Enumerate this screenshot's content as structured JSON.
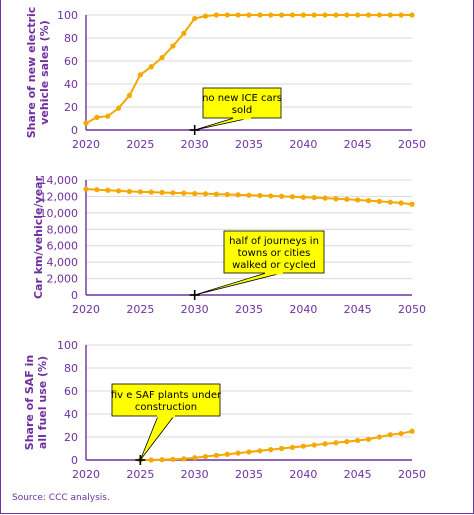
{
  "colors": {
    "axis": "#7030a0",
    "series": "#f5a800",
    "grid": "#d9d9d9",
    "callout_fill": "#ffff00"
  },
  "chart_data": [
    {
      "type": "line",
      "ylabel": "Share of new electric vehicle sales (%)",
      "ylim": [
        0,
        100
      ],
      "yticks": [
        0,
        20,
        40,
        60,
        80,
        100
      ],
      "ytick_labels": [
        "0",
        "20",
        "40",
        "60",
        "80",
        "100"
      ],
      "xlim": [
        2020,
        2050
      ],
      "xticks": [
        2020,
        2025,
        2030,
        2035,
        2040,
        2045,
        2050
      ],
      "grid": true,
      "series": [
        {
          "x": [
            2020,
            2021,
            2022,
            2023,
            2024,
            2025,
            2026,
            2027,
            2028,
            2029,
            2030,
            2031,
            2032,
            2033,
            2034,
            2035,
            2036,
            2037,
            2038,
            2039,
            2040,
            2041,
            2042,
            2043,
            2044,
            2045,
            2046,
            2047,
            2048,
            2049,
            2050
          ],
          "values": [
            6,
            11,
            12,
            19,
            30,
            48,
            55,
            63,
            73,
            84,
            97,
            99,
            100,
            100,
            100,
            100,
            100,
            100,
            100,
            100,
            100,
            100,
            100,
            100,
            100,
            100,
            100,
            100,
            100,
            100,
            100
          ]
        }
      ],
      "annotation": {
        "text_lines": [
          "no new ICE cars",
          "sold"
        ],
        "x": 2030,
        "y": 0
      }
    },
    {
      "type": "line",
      "ylabel": "Car km/vehicle/year",
      "ylim": [
        0,
        14000
      ],
      "yticks": [
        0,
        2000,
        4000,
        6000,
        8000,
        10000,
        12000,
        14000
      ],
      "ytick_labels": [
        "0",
        "2,000",
        "4,000",
        "6,000",
        "8,000",
        "10,000",
        "12,000",
        "14,000"
      ],
      "xlim": [
        2020,
        2050
      ],
      "xticks": [
        2020,
        2025,
        2030,
        2035,
        2040,
        2045,
        2050
      ],
      "grid": true,
      "series": [
        {
          "x": [
            2020,
            2021,
            2022,
            2023,
            2024,
            2025,
            2026,
            2027,
            2028,
            2029,
            2030,
            2031,
            2032,
            2033,
            2034,
            2035,
            2036,
            2037,
            2038,
            2039,
            2040,
            2041,
            2042,
            2043,
            2044,
            2045,
            2046,
            2047,
            2048,
            2049,
            2050
          ],
          "values": [
            12900,
            12820,
            12750,
            12680,
            12610,
            12560,
            12520,
            12480,
            12440,
            12400,
            12350,
            12320,
            12280,
            12240,
            12200,
            12150,
            12110,
            12060,
            12010,
            11960,
            11900,
            11850,
            11790,
            11720,
            11650,
            11570,
            11490,
            11400,
            11300,
            11200,
            11050
          ]
        }
      ],
      "annotation": {
        "text_lines": [
          "half of journeys in",
          "towns or cities",
          "walked or cycled"
        ],
        "x": 2030,
        "y": 0
      }
    },
    {
      "type": "line",
      "ylabel": "Share of SAF in all fuel use (%)",
      "ylim": [
        0,
        100
      ],
      "yticks": [
        0,
        20,
        40,
        60,
        80,
        100
      ],
      "ytick_labels": [
        "0",
        "20",
        "40",
        "60",
        "80",
        "100"
      ],
      "xlim": [
        2020,
        2050
      ],
      "xticks": [
        2020,
        2025,
        2030,
        2035,
        2040,
        2045,
        2050
      ],
      "grid": true,
      "series": [
        {
          "x": [
            2025,
            2026,
            2027,
            2028,
            2029,
            2030,
            2031,
            2032,
            2033,
            2034,
            2035,
            2036,
            2037,
            2038,
            2039,
            2040,
            2041,
            2042,
            2043,
            2044,
            2045,
            2046,
            2047,
            2048,
            2049,
            2050
          ],
          "values": [
            0,
            0,
            0.3,
            0.6,
            1,
            2,
            3,
            4,
            5,
            6,
            7,
            8,
            9,
            10,
            11,
            12,
            13,
            14,
            15,
            16,
            17,
            18,
            20,
            22,
            23,
            25
          ]
        }
      ],
      "annotation": {
        "text_lines": [
          "fiv e SAF plants under",
          "construction"
        ],
        "x": 2025,
        "y": 0
      }
    }
  ],
  "source": "Source: CCC analysis."
}
